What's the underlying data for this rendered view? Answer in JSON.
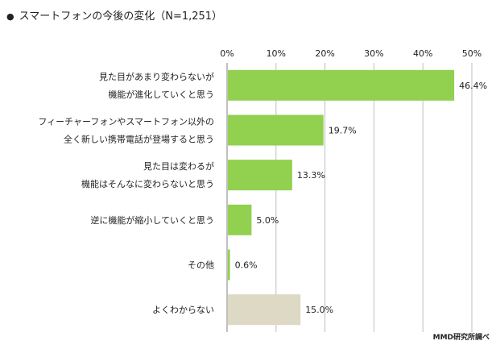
{
  "title": "スマートフォンの今後の変化（N=1,251）",
  "title_bullet": "●",
  "source": "MMD研究所調べ",
  "colors": {
    "bar_main": "#92D050",
    "bar_other": "#DDD9C4",
    "grid": "#BFBFBF",
    "axis": "#808080"
  },
  "chart_data": {
    "type": "bar",
    "orientation": "horizontal",
    "xlim": [
      0,
      50
    ],
    "xticks": [
      "0%",
      "10%",
      "20%",
      "30%",
      "40%",
      "50%"
    ],
    "xtick_values": [
      0,
      10,
      20,
      30,
      40,
      50
    ],
    "grid": true,
    "categories": [
      [
        "見た目があまり変わらないが",
        "機能が進化していくと思う"
      ],
      [
        "フィーチャーフォンやスマートフォン以外の",
        "全く新しい携帯電話が登場すると思う"
      ],
      [
        "見た目は変わるが",
        "機能はそんなに変わらないと思う"
      ],
      [
        "逆に機能が縮小していくと思う"
      ],
      [
        "その他"
      ],
      [
        "よくわからない"
      ]
    ],
    "values": [
      46.4,
      19.7,
      13.3,
      5.0,
      0.6,
      15.0
    ],
    "value_labels": [
      "46.4%",
      "19.7%",
      "13.3%",
      "5.0%",
      "0.6%",
      "15.0%"
    ],
    "bar_colors": [
      "#92D050",
      "#92D050",
      "#92D050",
      "#92D050",
      "#92D050",
      "#DDD9C4"
    ]
  }
}
